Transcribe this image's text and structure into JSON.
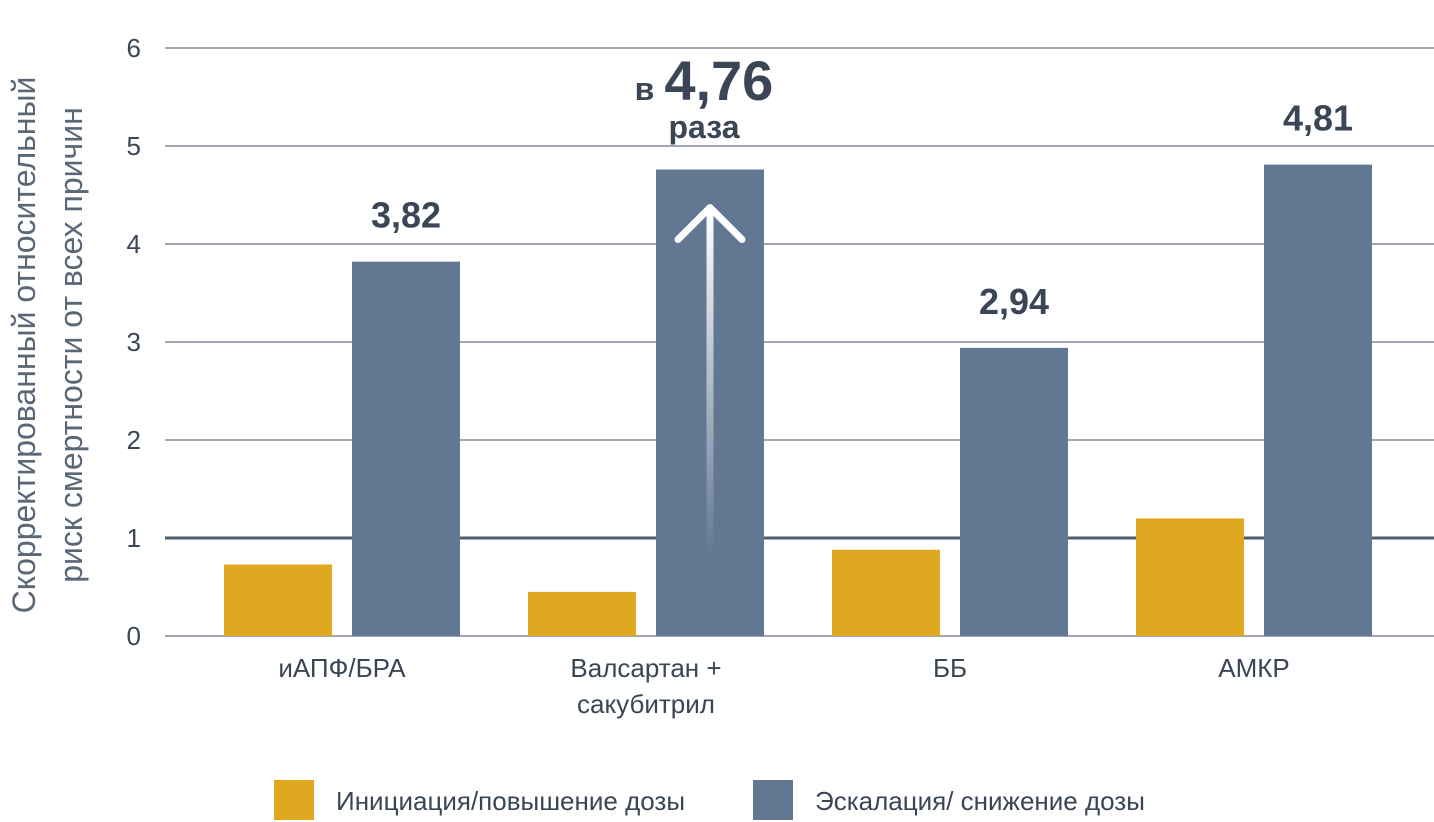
{
  "chart_data": {
    "type": "bar",
    "ylabel_line1": "Скорректированный относительный",
    "ylabel_line2": "риск смертности от всех причин",
    "ylim": [
      0,
      6
    ],
    "yticks": [
      "0",
      "1",
      "2",
      "3",
      "4",
      "5",
      "6"
    ],
    "grid": true,
    "legend_position": "bottom",
    "categories": [
      [
        "иАПФ/БРА"
      ],
      [
        "Валсартан +",
        "сакубитрил"
      ],
      [
        "ББ"
      ],
      [
        "АМКР"
      ]
    ],
    "series": [
      {
        "name": "Инициация/повышение дозы",
        "color": "#e0a820",
        "values": [
          0.73,
          0.45,
          0.88,
          1.2
        ]
      },
      {
        "name": "Эскалация/ снижение дозы",
        "color": "#627792",
        "values": [
          3.82,
          4.76,
          2.94,
          4.81
        ]
      }
    ],
    "data_labels": [
      "3,82",
      "",
      "2,94",
      "4,81"
    ],
    "annotation": {
      "prefix": "в",
      "value": "4,76",
      "suffix": "раза"
    }
  }
}
